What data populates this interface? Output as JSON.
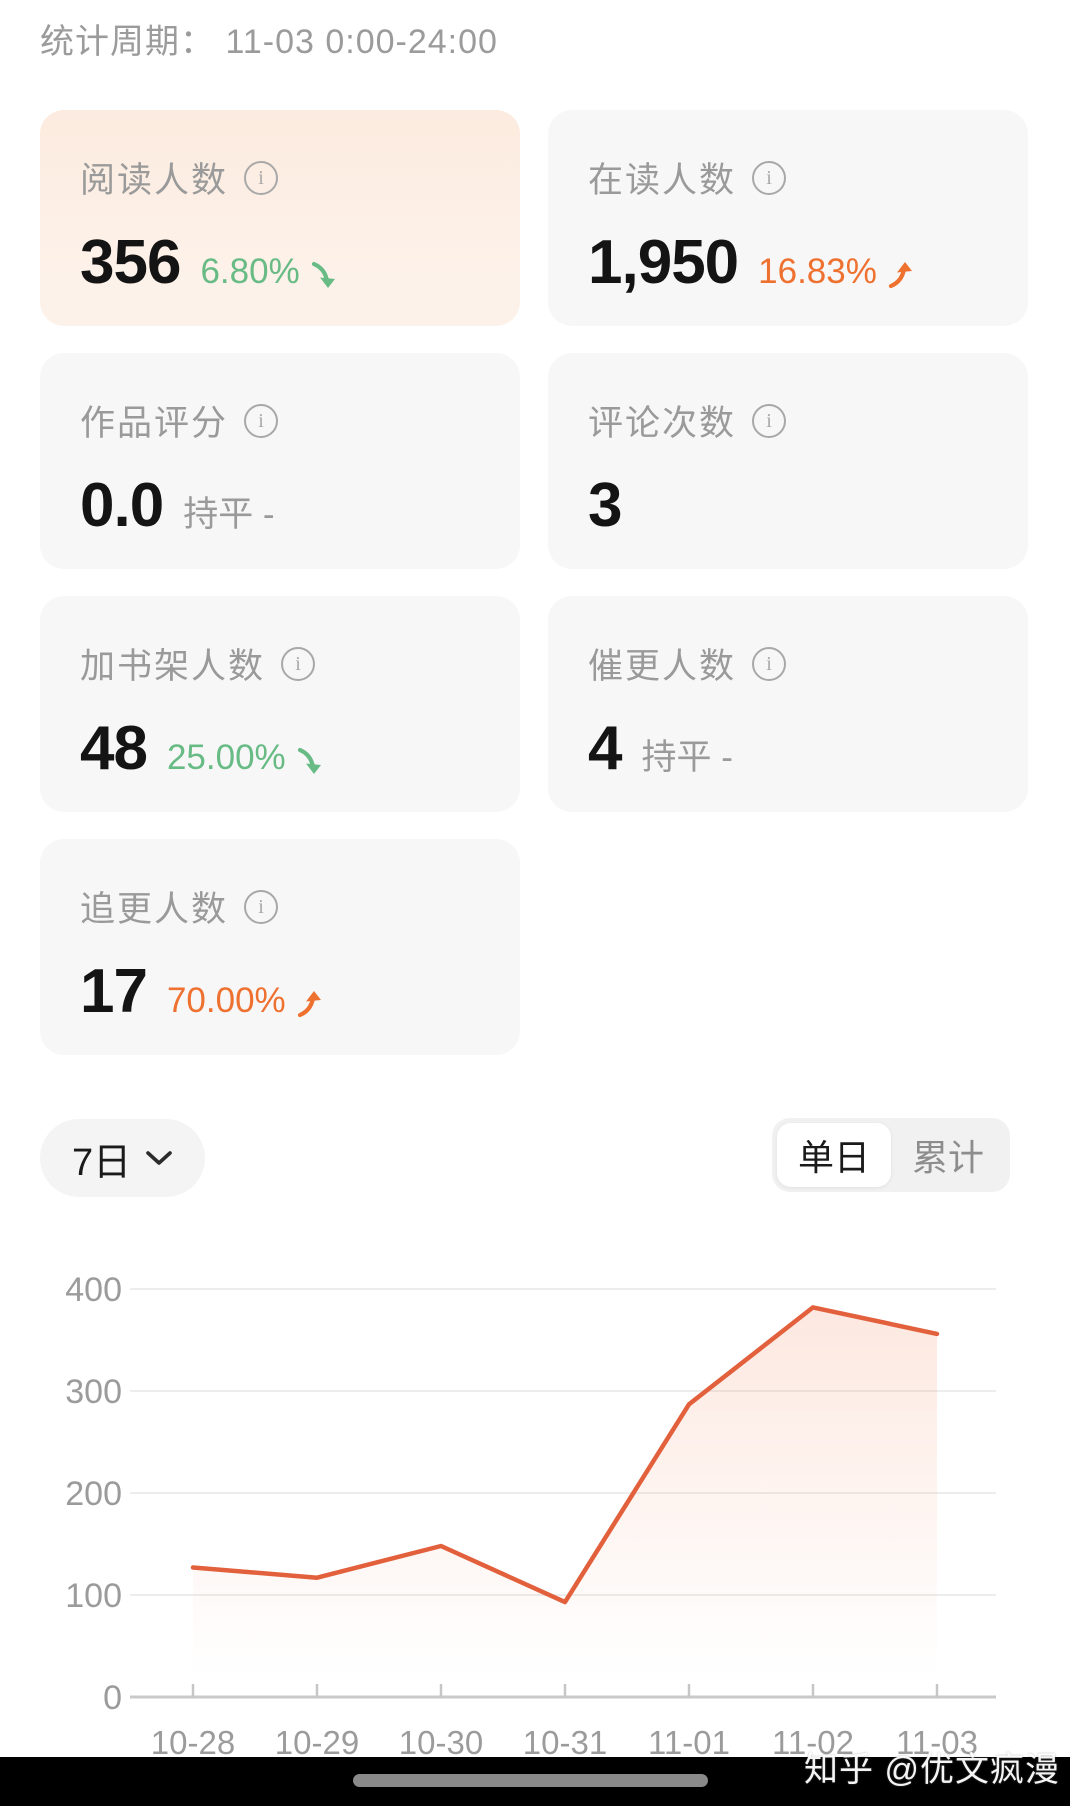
{
  "header": {
    "period_label": "统计周期：",
    "period_value": "11-03 0:00-24:00"
  },
  "cards": [
    {
      "key": "reading-users",
      "label": "阅读人数",
      "value": "356",
      "change": "6.80%",
      "direction": "down",
      "highlight": true
    },
    {
      "key": "current-readers",
      "label": "在读人数",
      "value": "1,950",
      "change": "16.83%",
      "direction": "up",
      "highlight": false
    },
    {
      "key": "work-rating",
      "label": "作品评分",
      "value": "0.0",
      "change": "持平 -",
      "direction": "flat",
      "highlight": false
    },
    {
      "key": "comment-count",
      "label": "评论次数",
      "value": "3",
      "change": "",
      "direction": "none",
      "highlight": false
    },
    {
      "key": "bookshelf-adds",
      "label": "加书架人数",
      "value": "48",
      "change": "25.00%",
      "direction": "down",
      "highlight": false
    },
    {
      "key": "update-urges",
      "label": "催更人数",
      "value": "4",
      "change": "持平 -",
      "direction": "flat",
      "highlight": false
    },
    {
      "key": "update-followers",
      "label": "追更人数",
      "value": "17",
      "change": "70.00%",
      "direction": "up",
      "highlight": false
    }
  ],
  "controls": {
    "range_label": "7日",
    "segments": [
      "单日",
      "累计"
    ],
    "selected_segment": "单日"
  },
  "chart_data": {
    "type": "area",
    "categories": [
      "10-28",
      "10-29",
      "10-30",
      "10-31",
      "11-01",
      "11-02",
      "11-03"
    ],
    "values": [
      127,
      117,
      148,
      93,
      287,
      382,
      356
    ],
    "yticks": [
      0,
      100,
      200,
      300,
      400
    ],
    "ylim": [
      0,
      400
    ],
    "grid": true,
    "legend": "none",
    "line_color": "#e2603c"
  },
  "watermark": "知乎 @优文疯漫",
  "colors": {
    "accent_orange": "#ee7130",
    "trend_green": "#68bb84",
    "line_orange": "#e2603c",
    "card_gray": "#f7f7f8",
    "card_highlight": "#fcebdf",
    "text_gray": "#9b9b9b",
    "text_dark": "#141414"
  }
}
